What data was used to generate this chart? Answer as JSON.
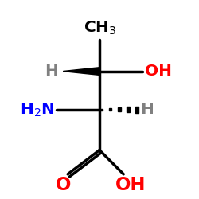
{
  "bg_color": "#ffffff",
  "bond_color": "#000000",
  "gray_color": "#808080",
  "blue_color": "#0000ff",
  "red_color": "#ff0000",
  "black_color": "#000000",
  "ctx": 0.5,
  "cty": 0.635,
  "cbx": 0.5,
  "cby": 0.435,
  "ch3_label": "CH$_3$",
  "oh_label": "OH",
  "h_top_label": "H",
  "h2n_label": "H$_2$N",
  "h_bot_label": "H",
  "o_label": "O",
  "oh_bot_label": "OH"
}
